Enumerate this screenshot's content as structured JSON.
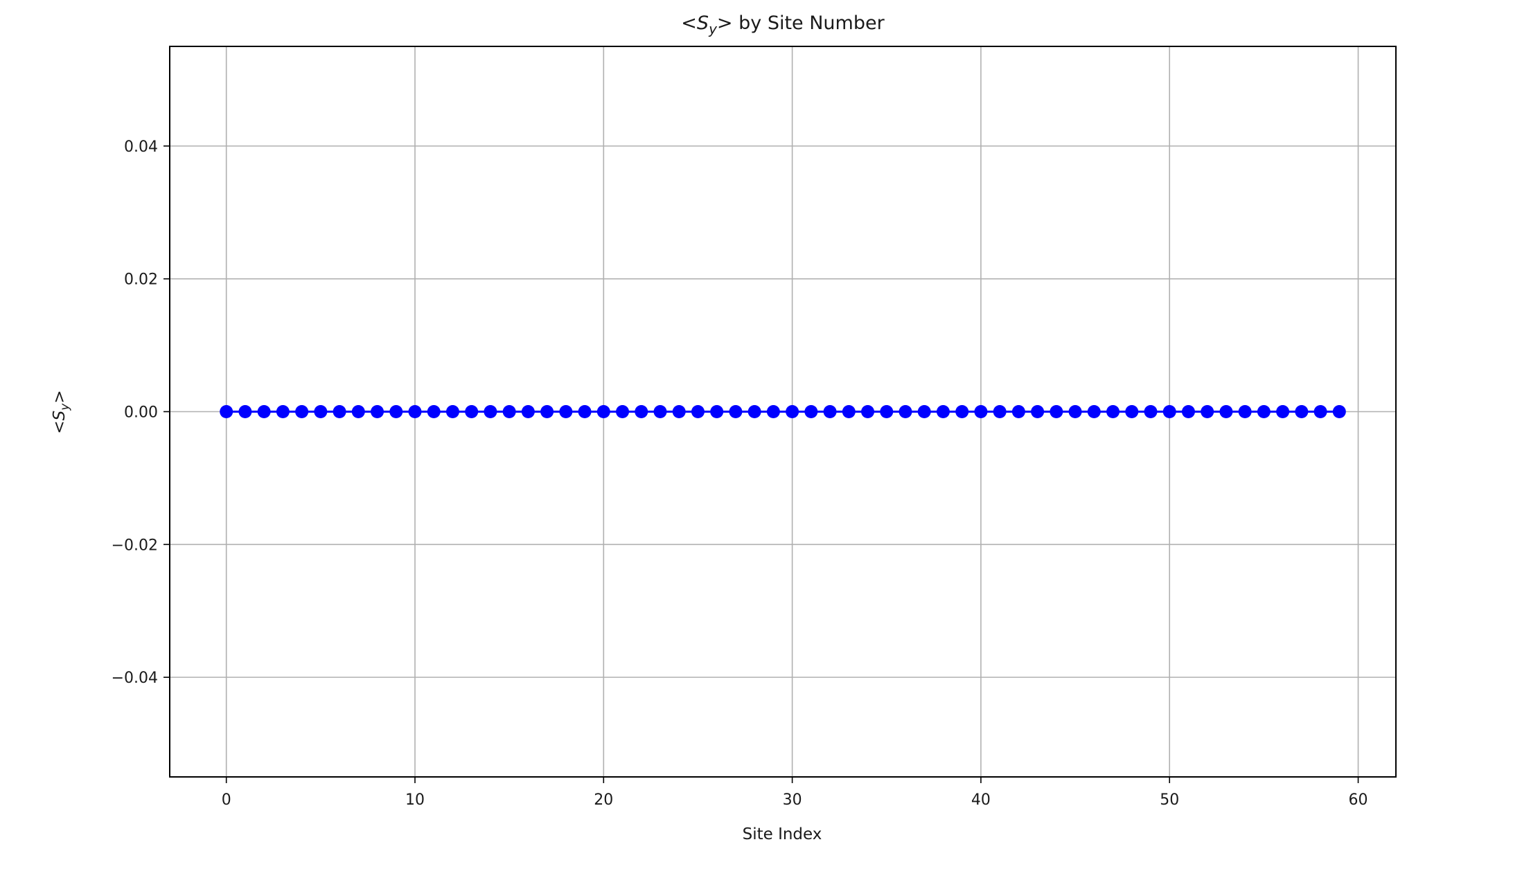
{
  "chart_data": {
    "type": "line",
    "title": {
      "lt": "<",
      "sym": "S",
      "sub": "y",
      "gt": ">",
      "rest": " by Site Number"
    },
    "xlabel": "Site Index",
    "ylabel": {
      "lt": "<",
      "sym": "S",
      "sub": "y",
      "gt": ">"
    },
    "xlim": [
      -3,
      62
    ],
    "ylim": [
      -0.055,
      0.055
    ],
    "xticks": [
      0,
      10,
      20,
      30,
      40,
      50,
      60
    ],
    "yticks": [
      -0.04,
      -0.02,
      0.0,
      0.02,
      0.04
    ],
    "xtick_labels": [
      "0",
      "10",
      "20",
      "30",
      "40",
      "50",
      "60"
    ],
    "ytick_labels": [
      "−0.04",
      "−0.02",
      "0.00",
      "0.02",
      "0.04"
    ],
    "grid": true,
    "series": [
      {
        "color": "#0000ff",
        "marker": "circle",
        "x": [
          0,
          1,
          2,
          3,
          4,
          5,
          6,
          7,
          8,
          9,
          10,
          11,
          12,
          13,
          14,
          15,
          16,
          17,
          18,
          19,
          20,
          21,
          22,
          23,
          24,
          25,
          26,
          27,
          28,
          29,
          30,
          31,
          32,
          33,
          34,
          35,
          36,
          37,
          38,
          39,
          40,
          41,
          42,
          43,
          44,
          45,
          46,
          47,
          48,
          49,
          50,
          51,
          52,
          53,
          54,
          55,
          56,
          57,
          58,
          59
        ],
        "values": [
          0,
          0,
          0,
          0,
          0,
          0,
          0,
          0,
          0,
          0,
          0,
          0,
          0,
          0,
          0,
          0,
          0,
          0,
          0,
          0,
          0,
          0,
          0,
          0,
          0,
          0,
          0,
          0,
          0,
          0,
          0,
          0,
          0,
          0,
          0,
          0,
          0,
          0,
          0,
          0,
          0,
          0,
          0,
          0,
          0,
          0,
          0,
          0,
          0,
          0,
          0,
          0,
          0,
          0,
          0,
          0,
          0,
          0,
          0,
          0
        ]
      }
    ]
  }
}
